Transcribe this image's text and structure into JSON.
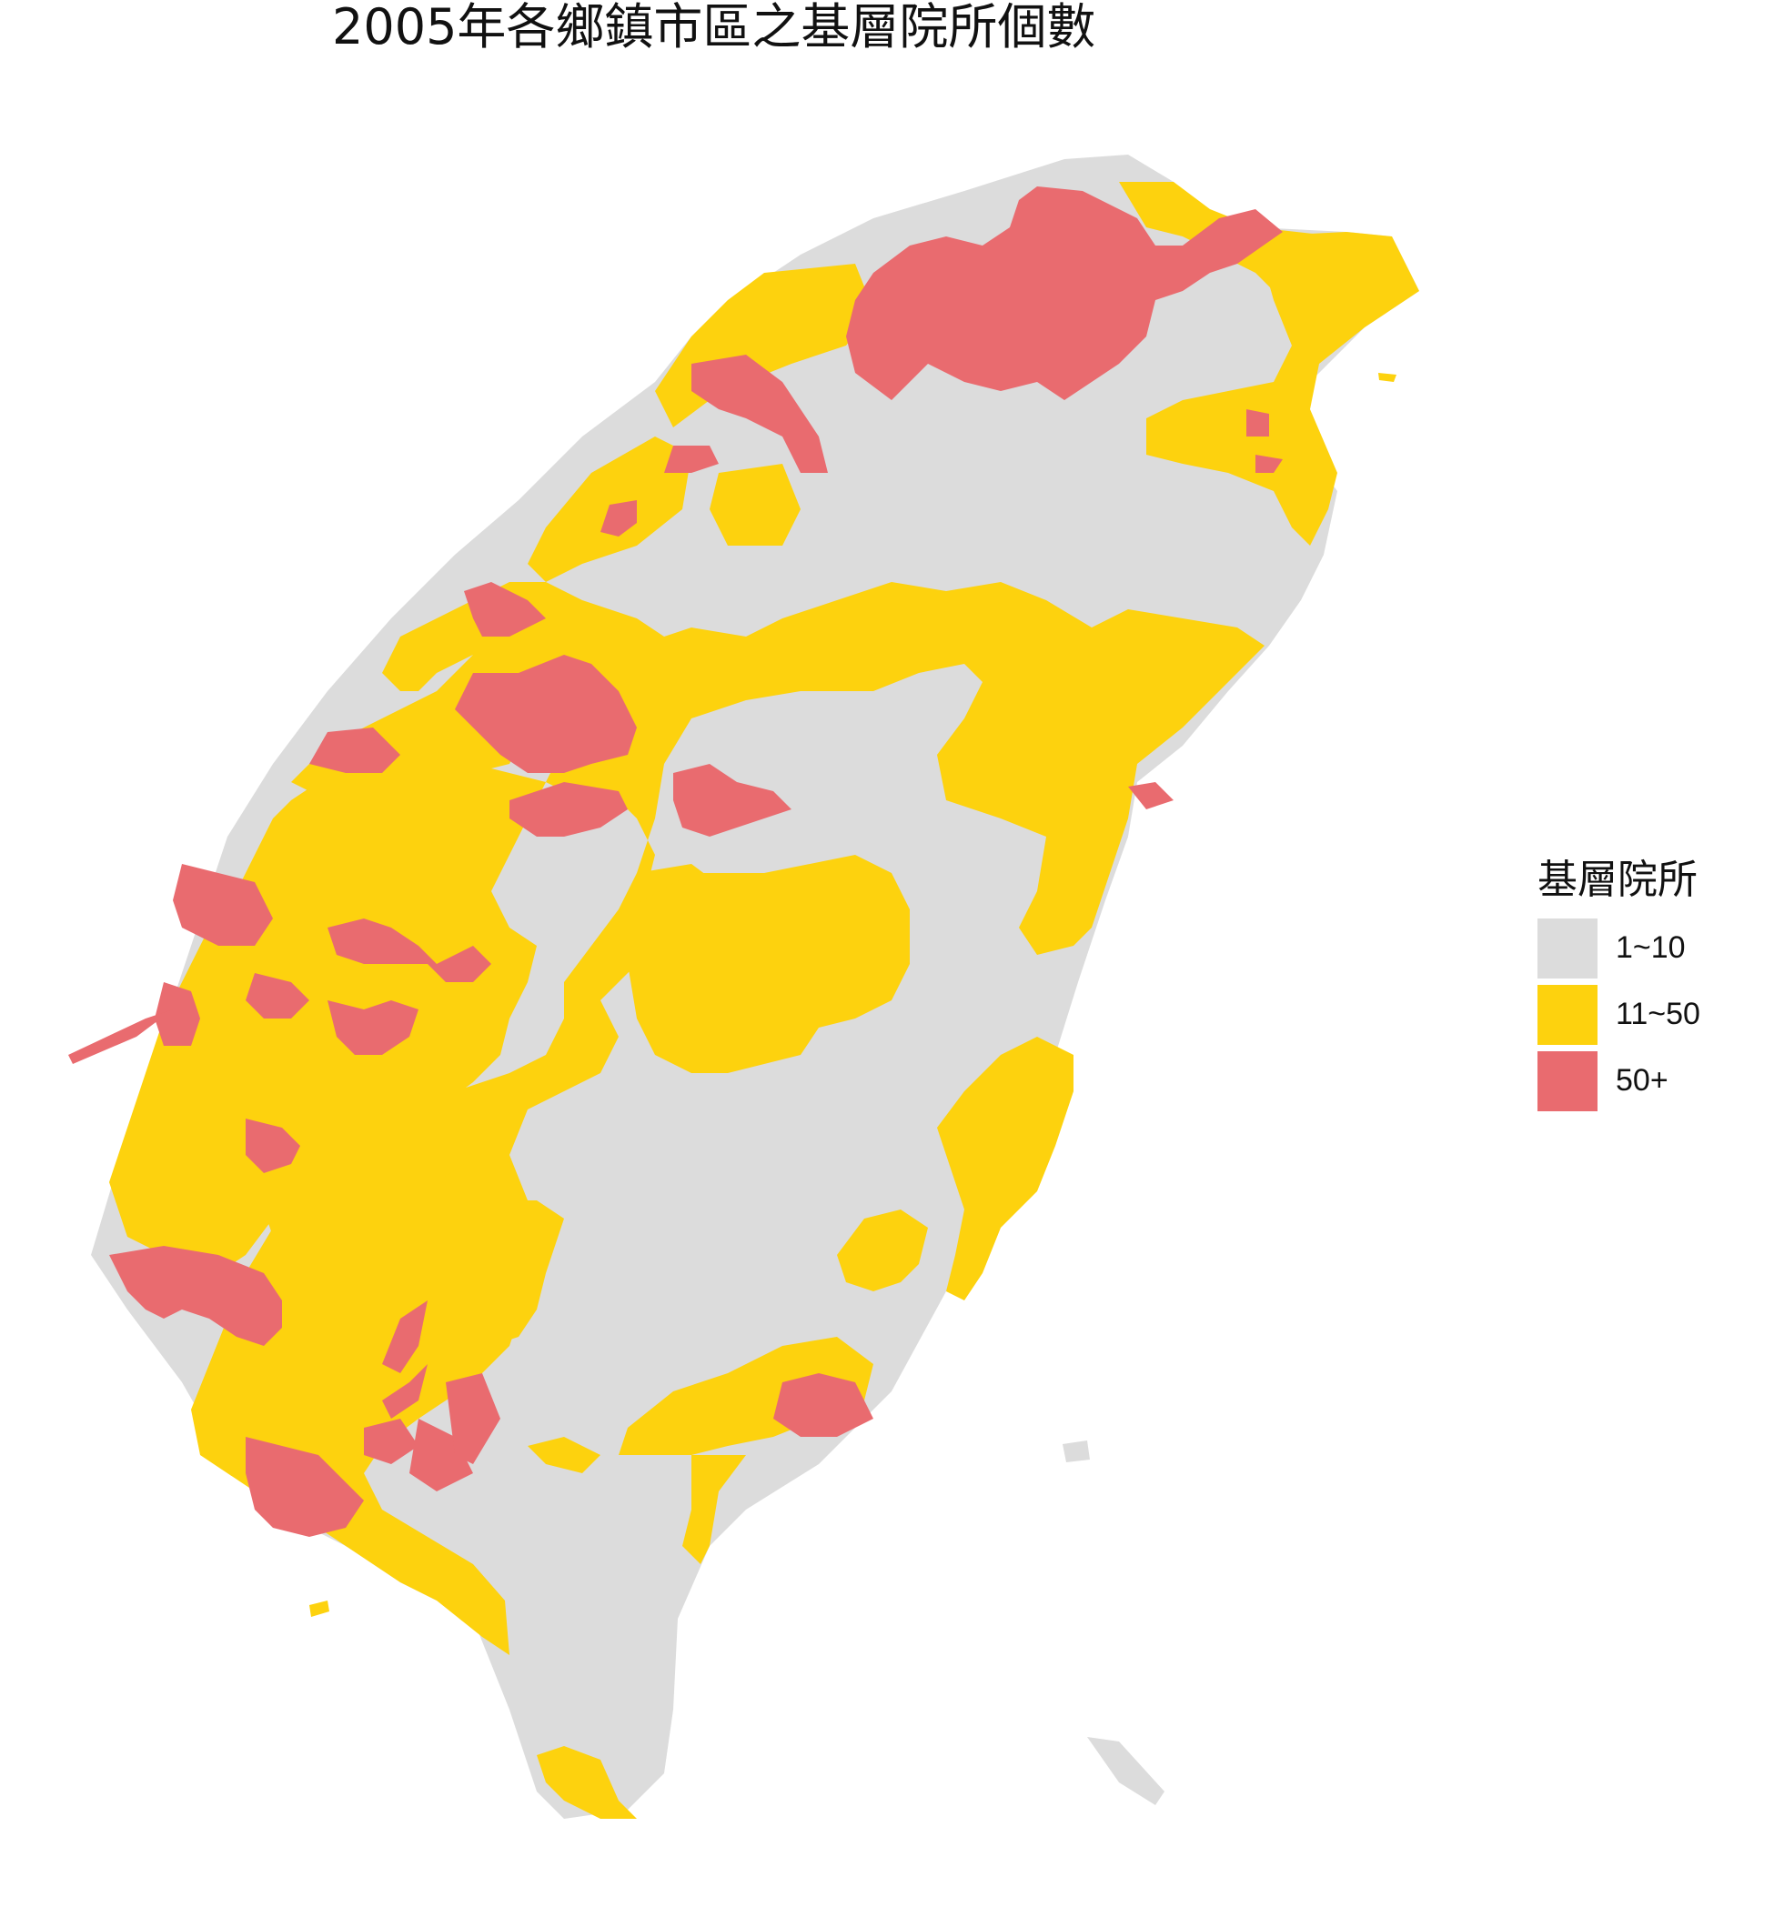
{
  "title": "2005年各鄉鎮市區之基層院所個數",
  "legend": {
    "title": "基層院所",
    "items": [
      {
        "label": "1~10",
        "color": "#dcdcdc"
      },
      {
        "label": "11~50",
        "color": "#fdd20e"
      },
      {
        "label": "50+",
        "color": "#e96b6f"
      }
    ]
  }
}
